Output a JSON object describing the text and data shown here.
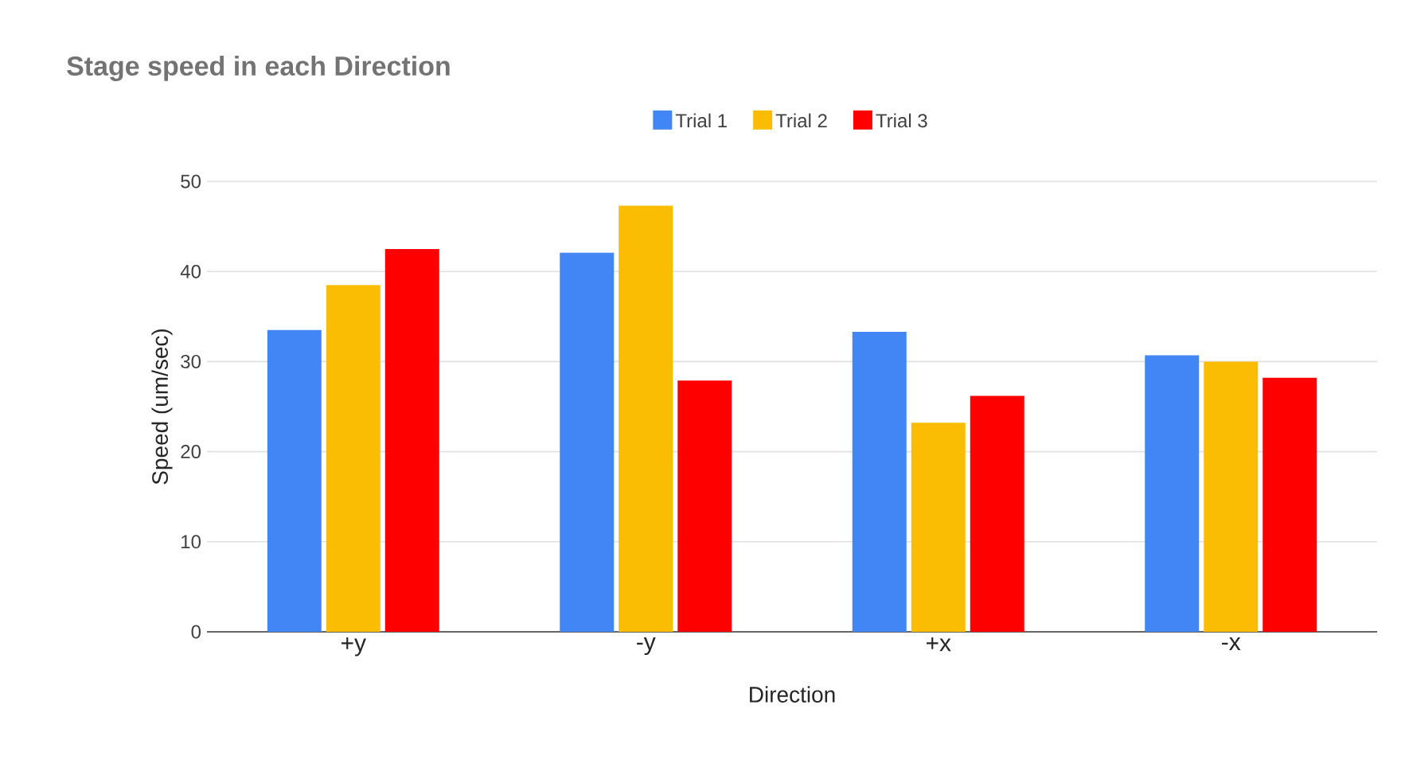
{
  "chart_data": {
    "type": "bar",
    "title": "Stage speed in each Direction",
    "xlabel": "Direction",
    "ylabel": "Speed (um/sec)",
    "categories": [
      "+y",
      "-y",
      "+x",
      "-x"
    ],
    "series": [
      {
        "name": "Trial 1",
        "color": "#4285f4",
        "values": [
          33.5,
          42.1,
          33.3,
          30.7
        ]
      },
      {
        "name": "Trial 2",
        "color": "#fbbc04",
        "values": [
          38.5,
          47.3,
          23.2,
          30.0
        ]
      },
      {
        "name": "Trial 3",
        "color": "#ff0000",
        "values": [
          42.5,
          27.9,
          26.2,
          28.2
        ]
      }
    ],
    "ylim": [
      0,
      50
    ],
    "yticks": [
      0,
      10,
      20,
      30,
      40,
      50
    ],
    "grid": "y",
    "legend": "top"
  }
}
